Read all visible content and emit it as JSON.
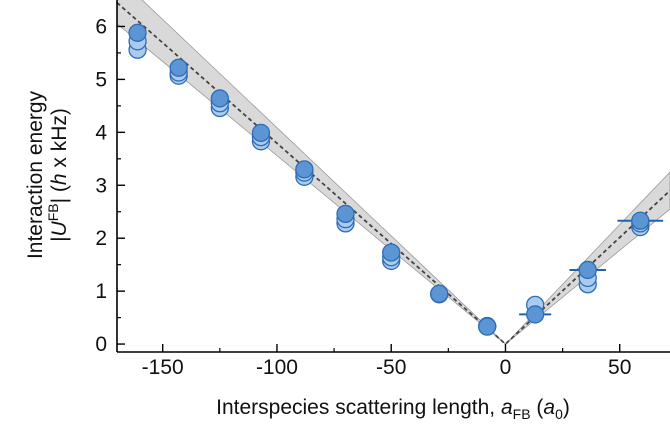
{
  "chart_data": {
    "type": "scatter",
    "xlabel": {
      "text": "Interspecies scattering length, ",
      "var": "a",
      "var_sub": "FB",
      "unit_open": " (",
      "unit": "a",
      "unit_sub": "0",
      "unit_close": ")"
    },
    "ylabel": {
      "line1": "Interaction energy",
      "line2_pre": "|",
      "line2_var": "U",
      "line2_sup": "FB",
      "line2_post": "| (",
      "line2_h": "h",
      "line2_tail": " x kHz)"
    },
    "xlim": [
      -170,
      72
    ],
    "ylim": [
      -0.15,
      6.5
    ],
    "x_ticks": [
      -150,
      -100,
      -50,
      0,
      50
    ],
    "x_tick_labels": [
      "-150",
      "-100",
      "-50",
      "0",
      "50"
    ],
    "y_ticks": [
      0,
      1,
      2,
      3,
      4,
      5,
      6
    ],
    "y_tick_labels": [
      "0",
      "1",
      "2",
      "3",
      "4",
      "5",
      "6"
    ],
    "grid": false,
    "colors": {
      "band": "#d9d9d9",
      "band_edge": "#9a9a9a",
      "light_points": "#a9cbee",
      "dark_points": "#5b95d4",
      "point_edge": "#2f6db5",
      "errorbar": "#1e63b0",
      "dashed_line": "#444444"
    },
    "band": {
      "left_x": [
        -170,
        0
      ],
      "left_lower": [
        6.05,
        0
      ],
      "left_upper": [
        6.95,
        0
      ],
      "right_x": [
        0,
        72
      ],
      "right_lower": [
        0,
        2.55
      ],
      "right_upper": [
        0,
        3.25
      ]
    },
    "dashed_line": {
      "x": [
        -170,
        0,
        72
      ],
      "y": [
        6.45,
        0,
        2.9
      ]
    },
    "series": [
      {
        "style": "light",
        "points": [
          {
            "x": -161,
            "y": 5.56
          },
          {
            "x": -161,
            "y": 5.72
          },
          {
            "x": -143,
            "y": 5.07
          },
          {
            "x": -143,
            "y": 5.13
          },
          {
            "x": -125,
            "y": 4.46
          },
          {
            "x": -125,
            "y": 4.55
          },
          {
            "x": -107,
            "y": 3.83
          },
          {
            "x": -107,
            "y": 3.91
          },
          {
            "x": -88,
            "y": 3.16
          },
          {
            "x": -88,
            "y": 3.24
          },
          {
            "x": -70,
            "y": 2.28
          },
          {
            "x": -70,
            "y": 2.36
          },
          {
            "x": -50,
            "y": 1.57
          },
          {
            "x": -50,
            "y": 1.64
          },
          {
            "x": -29,
            "y": 0.94
          },
          {
            "x": -8,
            "y": 0.34
          },
          {
            "x": 13,
            "y": 0.74
          },
          {
            "x": 36,
            "y": 1.13
          },
          {
            "x": 36,
            "y": 1.25
          },
          {
            "x": 59,
            "y": 2.21
          },
          {
            "x": 59,
            "y": 2.28
          }
        ]
      },
      {
        "style": "dark",
        "points": [
          {
            "x": -161,
            "y": 5.88,
            "xerr": 0
          },
          {
            "x": -143,
            "y": 5.22,
            "xerr": 0
          },
          {
            "x": -125,
            "y": 4.64,
            "xerr": 0
          },
          {
            "x": -107,
            "y": 3.99,
            "xerr": 0
          },
          {
            "x": -88,
            "y": 3.3,
            "xerr": 0
          },
          {
            "x": -70,
            "y": 2.46,
            "xerr": 0
          },
          {
            "x": -50,
            "y": 1.73,
            "xerr": 0
          },
          {
            "x": -29,
            "y": 0.95,
            "xerr": 0
          },
          {
            "x": -8,
            "y": 0.33,
            "xerr": 4
          },
          {
            "x": 13,
            "y": 0.56,
            "xerr": 7
          },
          {
            "x": 36,
            "y": 1.4,
            "xerr": 8
          },
          {
            "x": 59,
            "y": 2.33,
            "xerr": 10
          }
        ]
      }
    ]
  }
}
